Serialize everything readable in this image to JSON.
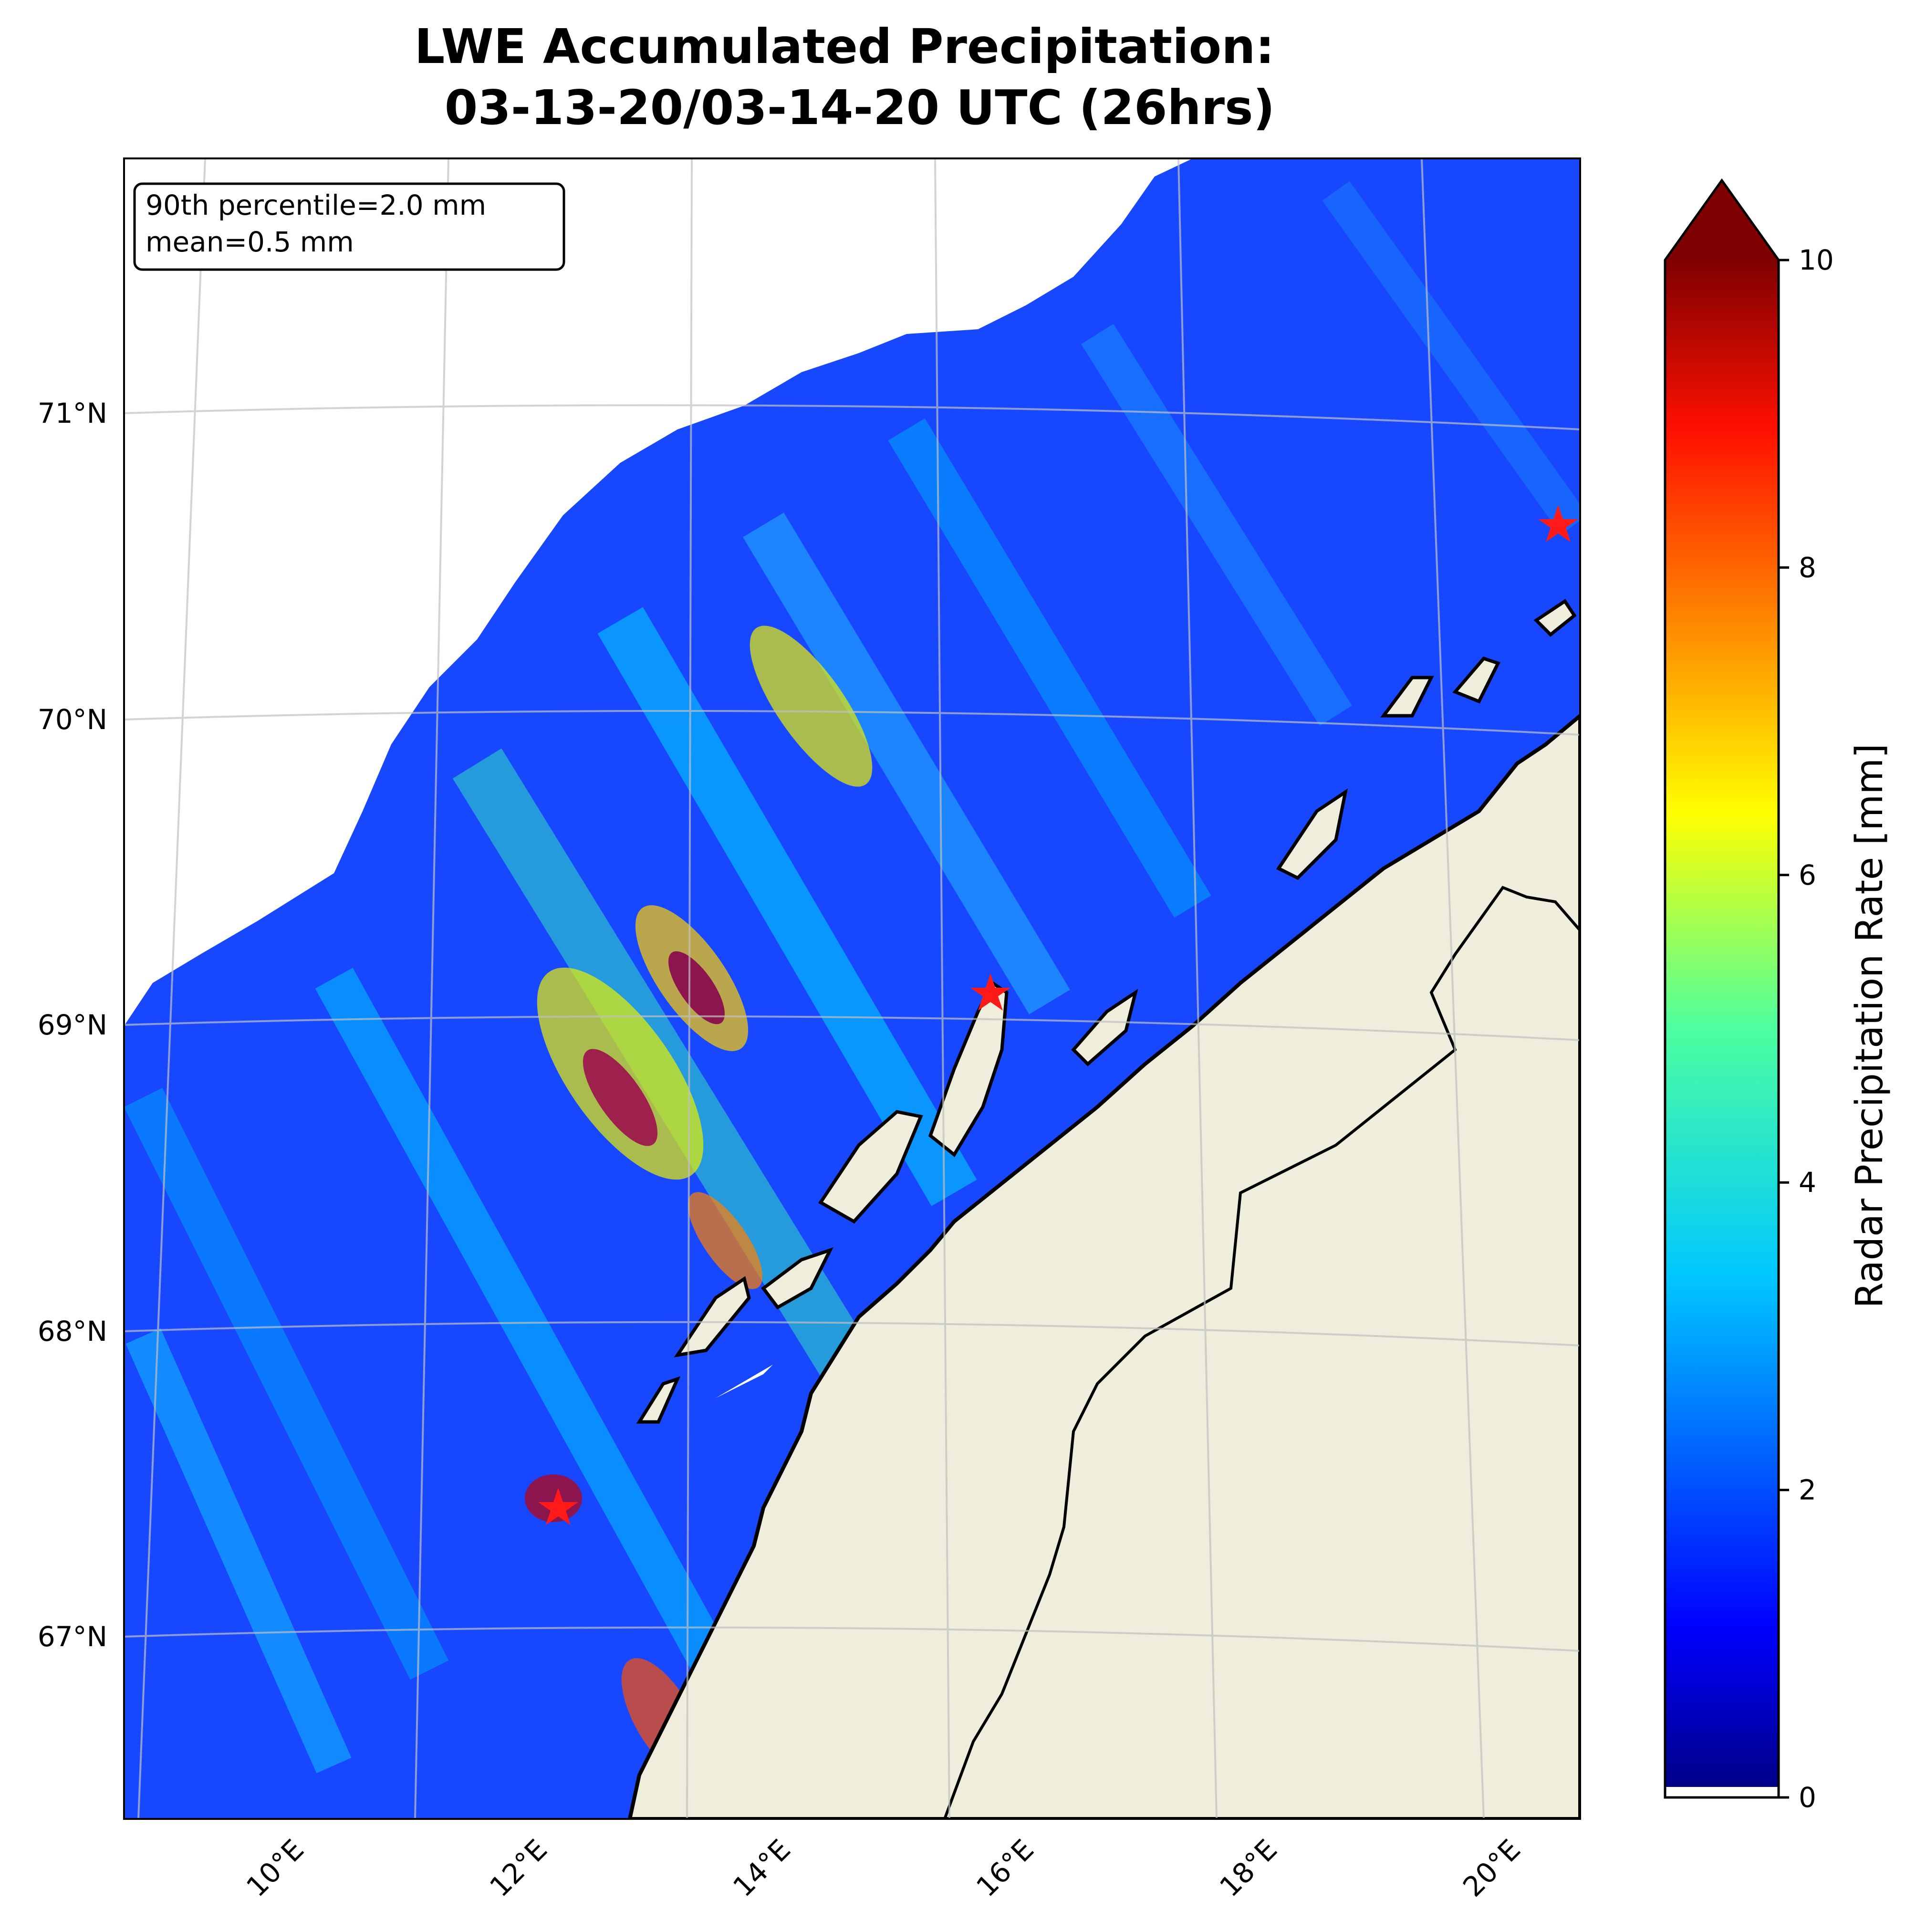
{
  "title": {
    "line1": "LWE Accumulated Precipitation:",
    "line2": "03-13-20/03-14-20 UTC (26hrs)"
  },
  "stats_box": {
    "line1": "90th percentile=2.0 mm",
    "line2": "mean=0.5 mm"
  },
  "lat_labels": [
    "71°N",
    "70°N",
    "69°N",
    "68°N",
    "67°N"
  ],
  "lon_labels": [
    "10°E",
    "12°E",
    "14°E",
    "16°E",
    "18°E",
    "20°E"
  ],
  "colorbar": {
    "label": "Radar Precipitation Rate [mm]",
    "ticks": [
      "0",
      "2",
      "4",
      "6",
      "8",
      "10"
    ],
    "min": 0,
    "max": 10,
    "extend": "max",
    "colormap": "jet"
  },
  "colors": {
    "land": "#efeedd",
    "coast": "#000000",
    "marker": "#ff1a1a",
    "no_data": "#ffffff"
  },
  "markers": [
    {
      "name": "radar-site-north-east",
      "lat": 70.6,
      "lon": 20.5
    },
    {
      "name": "radar-site-andoya",
      "lat": 69.2,
      "lon": 15.8
    },
    {
      "name": "radar-site-rost",
      "lat": 67.5,
      "lon": 12.1
    }
  ]
}
